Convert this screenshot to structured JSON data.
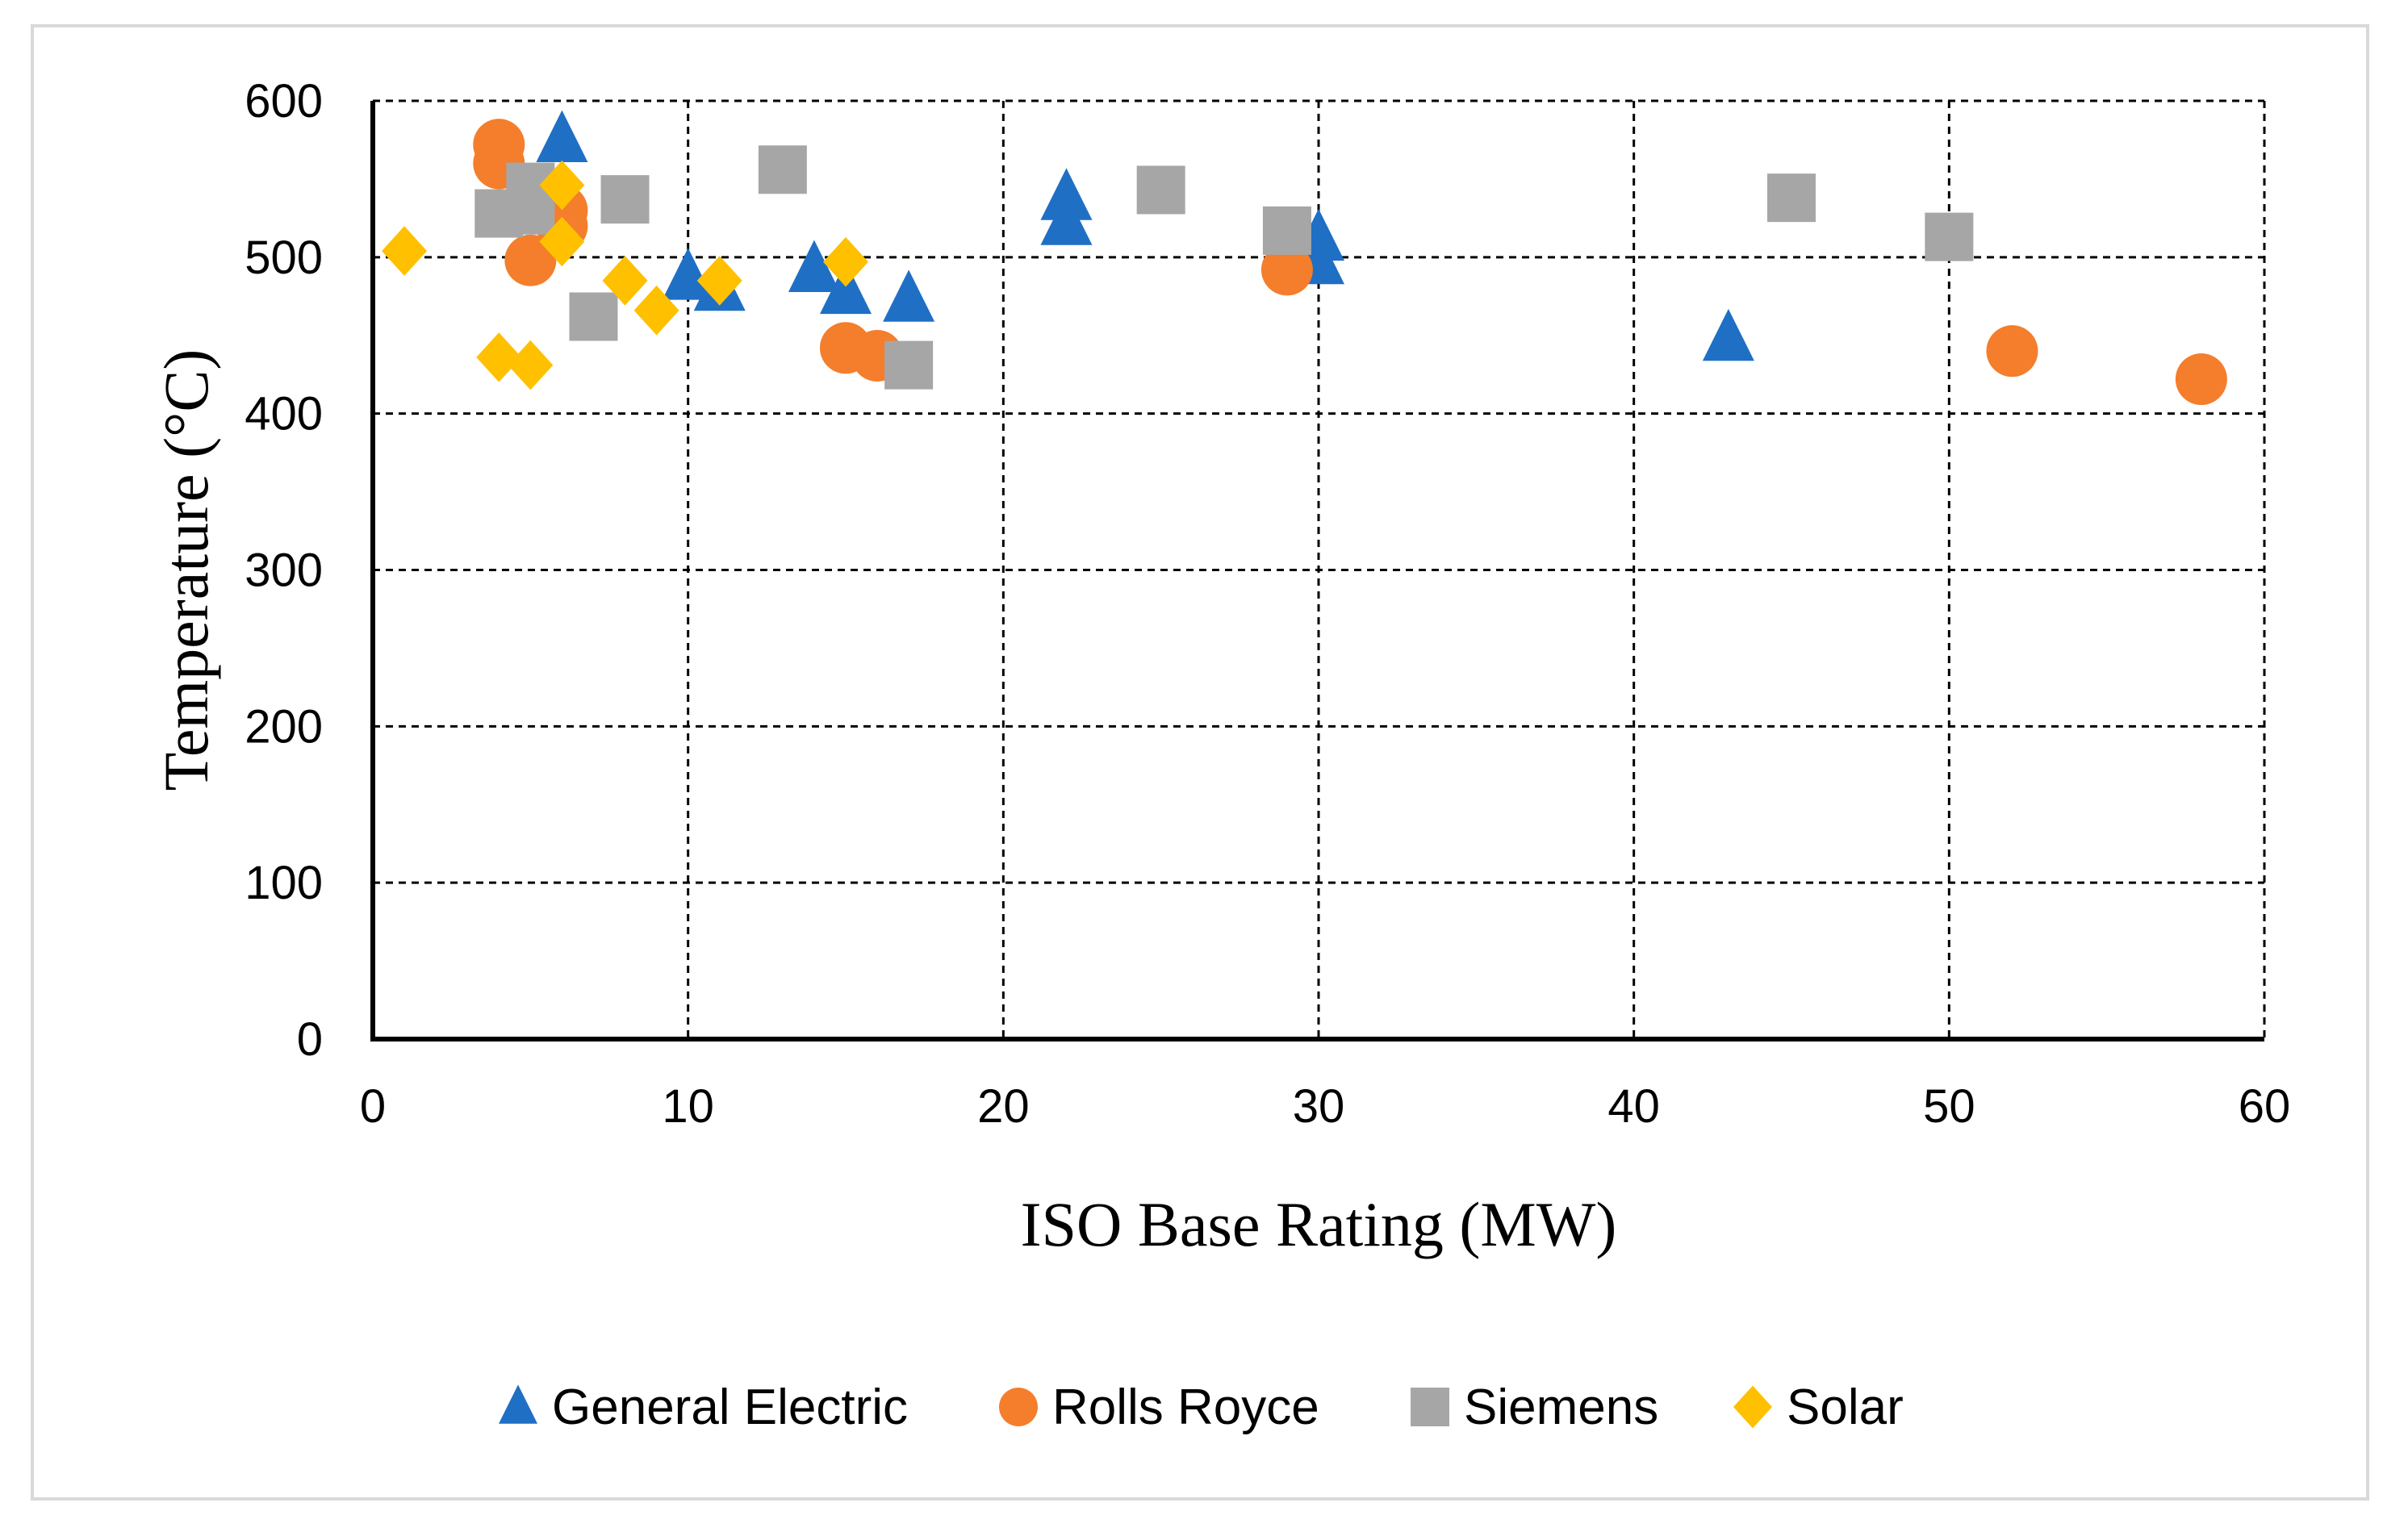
{
  "chart_data": {
    "type": "scatter",
    "title": "",
    "xlabel": "ISO Base Rating (MW)",
    "ylabel": "Temperature (°C)",
    "xlim": [
      0,
      60
    ],
    "ylim": [
      0,
      600
    ],
    "xticks": [
      0,
      10,
      20,
      30,
      40,
      50,
      60
    ],
    "yticks": [
      0,
      100,
      200,
      300,
      400,
      500,
      600
    ],
    "grid": true,
    "legend_position": "bottom",
    "series": [
      {
        "name": "General Electric",
        "marker": "triangle",
        "color": "#1F6FC5",
        "points": [
          [
            6,
            575
          ],
          [
            10,
            487
          ],
          [
            11,
            480
          ],
          [
            14,
            492
          ],
          [
            15,
            478
          ],
          [
            17,
            473
          ],
          [
            22,
            538
          ],
          [
            22,
            522
          ],
          [
            30,
            512
          ],
          [
            30,
            497
          ],
          [
            43,
            448
          ]
        ]
      },
      {
        "name": "Rolls Royce",
        "marker": "circle",
        "color": "#F47E2C",
        "points": [
          [
            4,
            572
          ],
          [
            4,
            560
          ],
          [
            6,
            530
          ],
          [
            6,
            520
          ],
          [
            5,
            498
          ],
          [
            15,
            442
          ],
          [
            16,
            437
          ],
          [
            29,
            492
          ],
          [
            52,
            440
          ],
          [
            58,
            422
          ]
        ]
      },
      {
        "name": "Siemens",
        "marker": "square",
        "color": "#A6A6A6",
        "points": [
          [
            4,
            528
          ],
          [
            5,
            545
          ],
          [
            5,
            530
          ],
          [
            8,
            537
          ],
          [
            7,
            462
          ],
          [
            13,
            556
          ],
          [
            17,
            431
          ],
          [
            25,
            543
          ],
          [
            29,
            517
          ],
          [
            45,
            538
          ],
          [
            50,
            513
          ]
        ]
      },
      {
        "name": "Solar",
        "marker": "diamond",
        "color": "#FFC000",
        "points": [
          [
            1,
            504
          ],
          [
            4,
            436
          ],
          [
            5,
            431
          ],
          [
            6,
            546
          ],
          [
            6,
            510
          ],
          [
            8,
            485
          ],
          [
            9,
            466
          ],
          [
            11,
            485
          ],
          [
            15,
            497
          ]
        ]
      }
    ]
  }
}
